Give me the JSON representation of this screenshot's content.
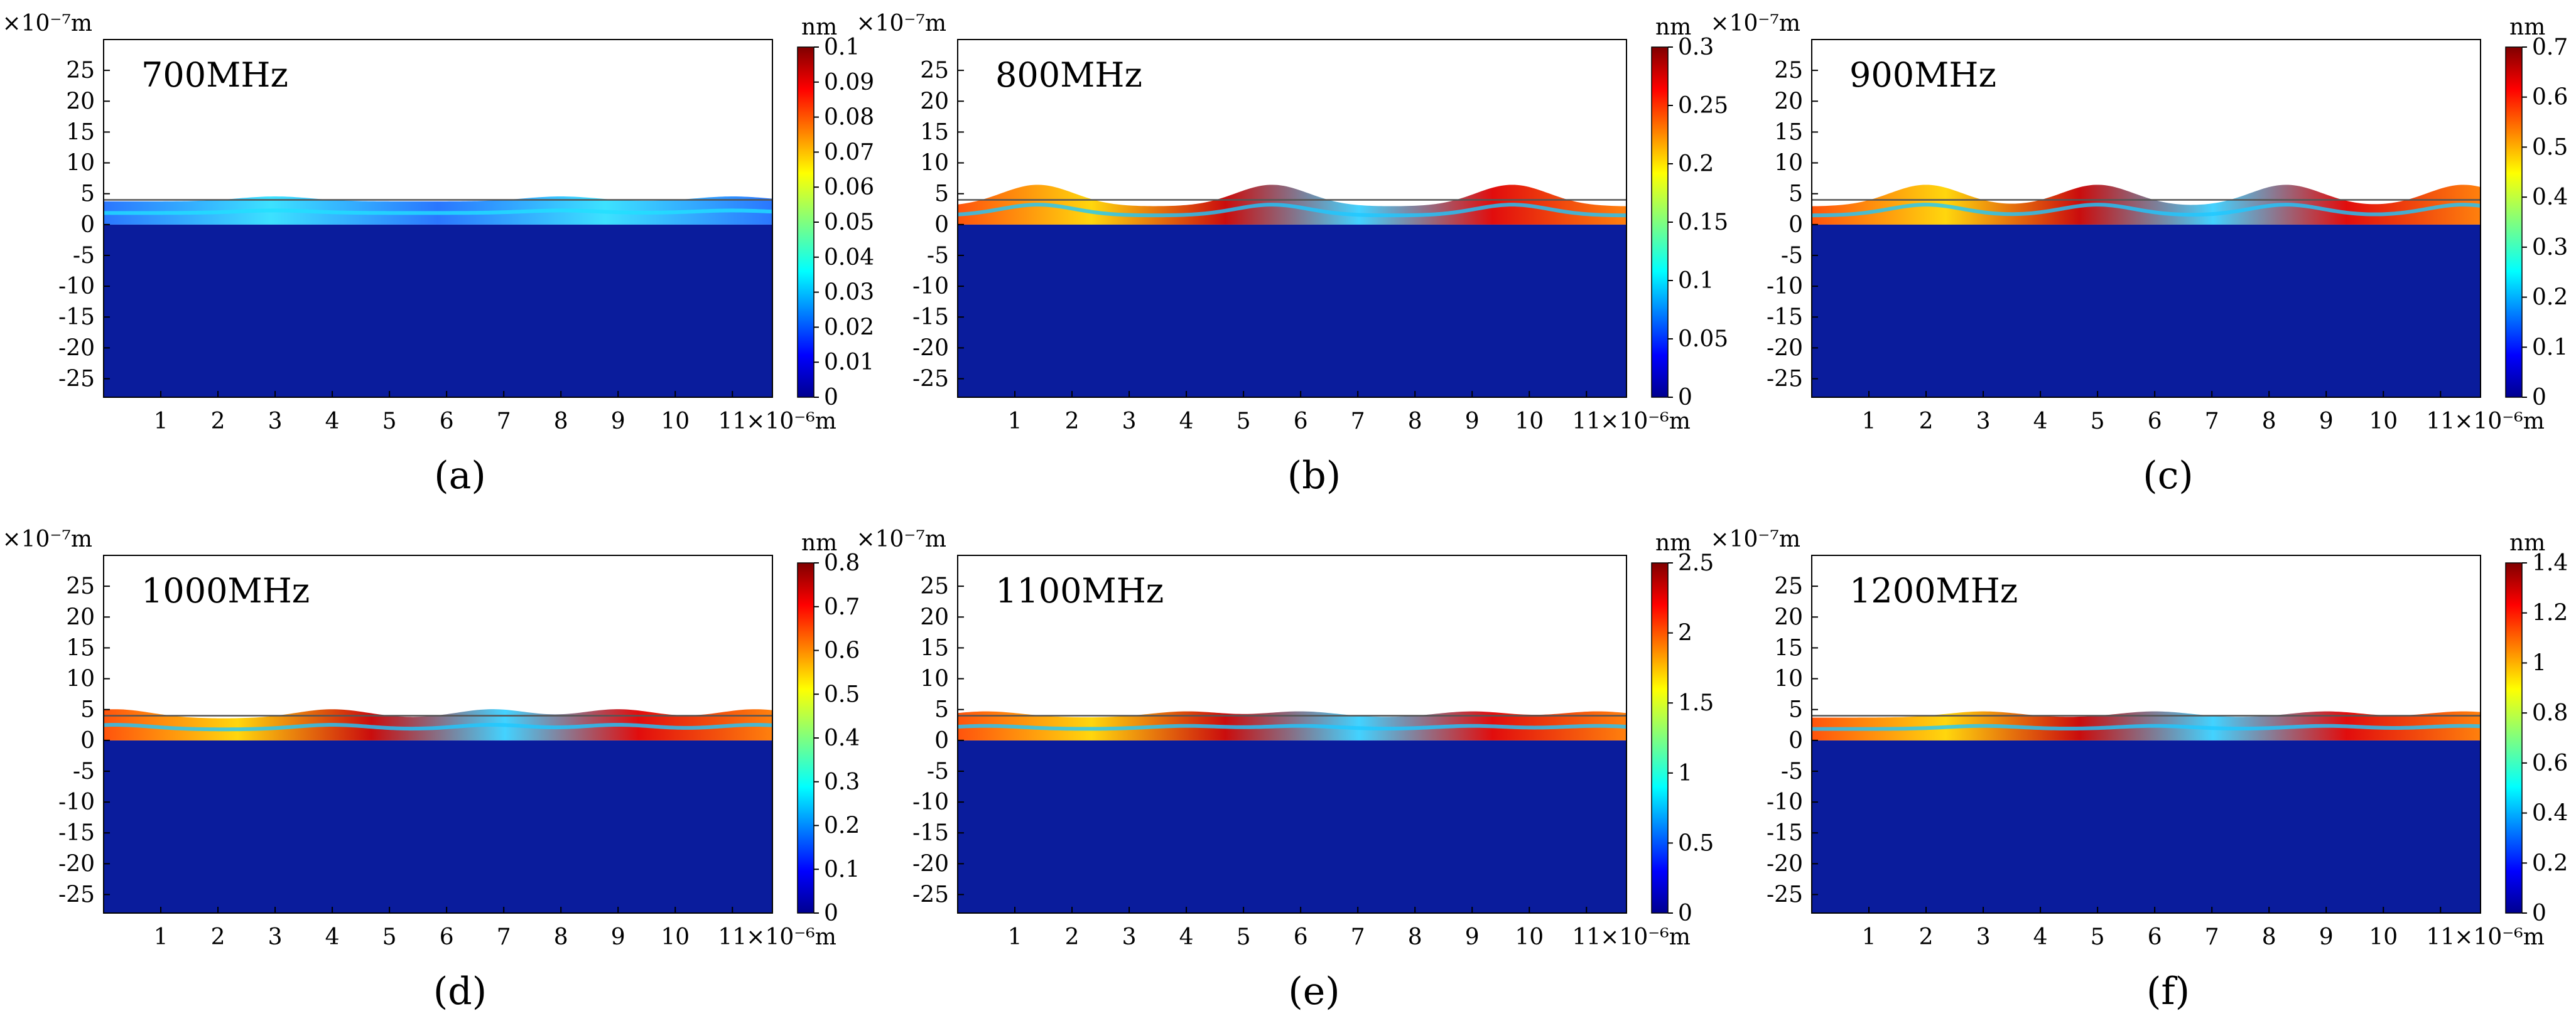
{
  "figure": {
    "panels": [
      {
        "caption": "(a)",
        "title": "700MHz",
        "colorbar": {
          "unit": "nm",
          "ticks": [
            "0.1",
            "0.09",
            "0.08",
            "0.07",
            "0.06",
            "0.05",
            "0.04",
            "0.03",
            "0.02",
            "0.01",
            "0"
          ],
          "max": 0.1
        },
        "y_unit": "×10⁻⁷m",
        "x_unit": "×10⁻⁶m",
        "y_ticks": [
          "25",
          "20",
          "15",
          "10",
          "5",
          "0",
          "-5",
          "-10",
          "-15",
          "-20",
          "-25"
        ],
        "x_ticks": [
          "1",
          "2",
          "3",
          "4",
          "5",
          "6",
          "7",
          "8",
          "9",
          "10",
          "11"
        ],
        "surface": {
          "baseline": 4,
          "amplitude": 0.8,
          "peaks": [
            3,
            8,
            11
          ]
        }
      },
      {
        "caption": "(b)",
        "title": "800MHz",
        "colorbar": {
          "unit": "nm",
          "ticks": [
            "0.3",
            "0.25",
            "0.2",
            "0.15",
            "0.1",
            "0.05",
            "0"
          ],
          "max": 0.3
        },
        "y_unit": "×10⁻⁷m",
        "x_unit": "×10⁻⁶m",
        "y_ticks": [
          "25",
          "20",
          "15",
          "10",
          "5",
          "0",
          "-5",
          "-10",
          "-15",
          "-20",
          "-25"
        ],
        "x_ticks": [
          "1",
          "2",
          "3",
          "4",
          "5",
          "6",
          "7",
          "8",
          "9",
          "10",
          "11"
        ],
        "surface": {
          "baseline": 4,
          "amplitude": 3.5,
          "peaks": [
            1.4,
            5.5,
            9.7
          ]
        }
      },
      {
        "caption": "(c)",
        "title": "900MHz",
        "colorbar": {
          "unit": "nm",
          "ticks": [
            "0.7",
            "0.6",
            "0.5",
            "0.4",
            "0.3",
            "0.2",
            "0.1",
            "0"
          ],
          "max": 0.7
        },
        "y_unit": "×10⁻⁷m",
        "x_unit": "×10⁻⁶m",
        "y_ticks": [
          "25",
          "20",
          "15",
          "10",
          "5",
          "0",
          "-5",
          "-10",
          "-15",
          "-20",
          "-25"
        ],
        "x_ticks": [
          "1",
          "2",
          "3",
          "4",
          "5",
          "6",
          "7",
          "8",
          "9",
          "10",
          "11"
        ],
        "surface": {
          "baseline": 4,
          "amplitude": 3.5,
          "peaks": [
            2,
            5,
            8.3,
            11.4
          ]
        }
      },
      {
        "caption": "(d)",
        "title": "1000MHz",
        "colorbar": {
          "unit": "nm",
          "ticks": [
            "0.8",
            "0.7",
            "0.6",
            "0.5",
            "0.4",
            "0.3",
            "0.2",
            "0.1",
            "0"
          ],
          "max": 0.8
        },
        "y_unit": "×10⁻⁷m",
        "x_unit": "×10⁻⁶m",
        "y_ticks": [
          "25",
          "20",
          "15",
          "10",
          "5",
          "0",
          "-5",
          "-10",
          "-15",
          "-20",
          "-25"
        ],
        "x_ticks": [
          "1",
          "2",
          "3",
          "4",
          "5",
          "6",
          "7",
          "8",
          "9",
          "10",
          "11"
        ],
        "surface": {
          "baseline": 4,
          "amplitude": 1.5,
          "peaks": [
            0.2,
            4,
            6.8,
            9,
            11.4
          ]
        }
      },
      {
        "caption": "(e)",
        "title": "1100MHz",
        "colorbar": {
          "unit": "nm",
          "ticks": [
            "2.5",
            "2",
            "1.5",
            "1",
            "0.5",
            "0"
          ],
          "max": 2.5
        },
        "y_unit": "×10⁻⁷m",
        "x_unit": "×10⁻⁶m",
        "y_ticks": [
          "25",
          "20",
          "15",
          "10",
          "5",
          "0",
          "-5",
          "-10",
          "-15",
          "-20",
          "-25"
        ],
        "x_ticks": [
          "1",
          "2",
          "3",
          "4",
          "5",
          "6",
          "7",
          "8",
          "9",
          "10",
          "11"
        ],
        "surface": {
          "baseline": 4,
          "amplitude": 1.0,
          "peaks": [
            0.5,
            4,
            6,
            9,
            11.2
          ]
        }
      },
      {
        "caption": "(f)",
        "title": "1200MHz",
        "colorbar": {
          "unit": "nm",
          "ticks": [
            "1.4",
            "1.2",
            "1",
            "0.8",
            "0.6",
            "0.4",
            "0.2",
            "0"
          ],
          "max": 1.4
        },
        "y_unit": "×10⁻⁷m",
        "x_unit": "×10⁻⁶m",
        "y_ticks": [
          "25",
          "20",
          "15",
          "10",
          "5",
          "0",
          "-5",
          "-10",
          "-15",
          "-20",
          "-25"
        ],
        "x_ticks": [
          "1",
          "2",
          "3",
          "4",
          "5",
          "6",
          "7",
          "8",
          "9",
          "10",
          "11"
        ],
        "surface": {
          "baseline": 4,
          "amplitude": 1.0,
          "peaks": [
            3,
            6,
            9,
            11.4
          ]
        }
      }
    ],
    "colors": {
      "background": "#ffffff",
      "substrate": "#0a1c9c",
      "frame": "#000000"
    }
  }
}
